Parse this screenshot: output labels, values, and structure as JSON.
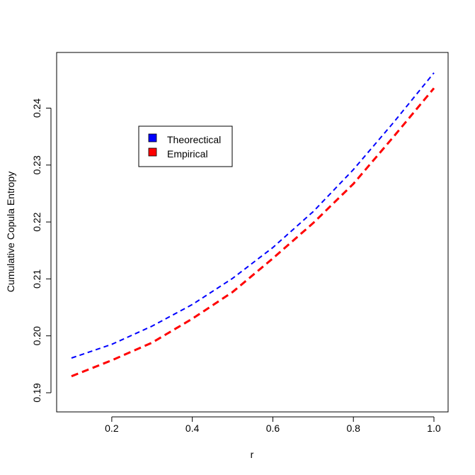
{
  "chart_data": {
    "type": "line",
    "title": "",
    "xlabel": "r",
    "ylabel": "Cumulative Copula Entropy",
    "xlim": [
      0.1,
      1.0
    ],
    "ylim": [
      0.19,
      0.245
    ],
    "xticks": [
      0.2,
      0.4,
      0.6,
      0.8,
      1.0
    ],
    "xtick_labels": [
      "0.2",
      "0.4",
      "0.6",
      "0.8",
      "1.0"
    ],
    "yticks": [
      0.19,
      0.2,
      0.21,
      0.22,
      0.23,
      0.24
    ],
    "ytick_labels": [
      "0.19",
      "0.20",
      "0.21",
      "0.22",
      "0.23",
      "0.24"
    ],
    "grid": false,
    "legend_position": "top-left",
    "x": [
      0.1,
      0.2,
      0.3,
      0.4,
      0.5,
      0.6,
      0.7,
      0.8,
      0.9,
      1.0
    ],
    "series": [
      {
        "name": "Theorectical",
        "color": "#0000FF",
        "line_style": "dashed",
        "values": [
          0.1961,
          0.1985,
          0.2017,
          0.2055,
          0.2101,
          0.2155,
          0.2218,
          0.2292,
          0.2375,
          0.2462
        ]
      },
      {
        "name": "Empirical",
        "color": "#FF0000",
        "line_style": "dashed",
        "values": [
          0.1929,
          0.1957,
          0.1988,
          0.203,
          0.2077,
          0.2136,
          0.2198,
          0.2267,
          0.235,
          0.2435
        ]
      }
    ]
  }
}
